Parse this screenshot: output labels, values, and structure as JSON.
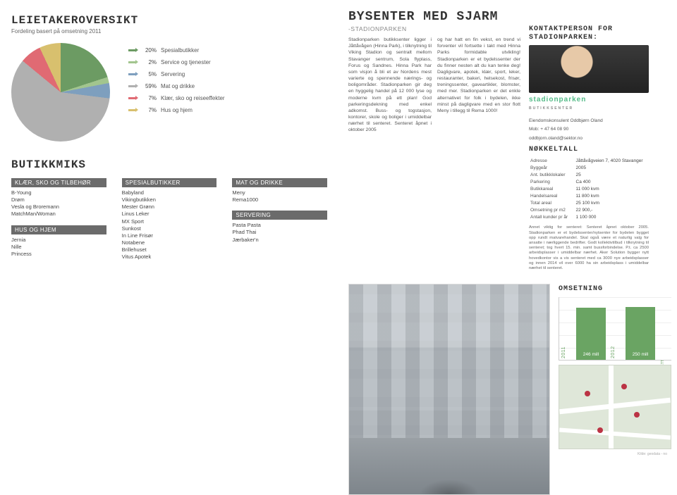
{
  "left": {
    "title": "LEIETAKEROVERSIKT",
    "subtitle": "Fordeling basert på omsetning 2011",
    "pie": {
      "type": "pie",
      "background_color": "#ffffff",
      "slices": [
        {
          "label": "Spesialbutikker",
          "pct": 20,
          "color": "#6c9b63"
        },
        {
          "label": "Service og tjenester",
          "pct": 2,
          "color": "#a2c58e"
        },
        {
          "label": "Servering",
          "pct": 5,
          "color": "#7e9fbe"
        },
        {
          "label": "Mat og drikke",
          "pct": 59,
          "color": "#b0b0b0"
        },
        {
          "label": "Klær, sko og reiseeffekter",
          "pct": 7,
          "color": "#e06a73"
        },
        {
          "label": "Hus og hjem",
          "pct": 7,
          "color": "#d8c06e"
        }
      ]
    },
    "butikkmiks": {
      "title": "BUTIKKMIKS",
      "columns": [
        {
          "groups": [
            {
              "title": "KLÆR, SKO OG TILBEHØR",
              "items": [
                "B-Young",
                "Drøm",
                "Vesla og Broremann",
                "MatchMan/Woman"
              ]
            },
            {
              "title": "HUS OG HJEM",
              "items": [
                "Jernia",
                "Nille",
                "Princess"
              ]
            }
          ]
        },
        {
          "groups": [
            {
              "title": "SPESIALBUTIKKER",
              "items": [
                "Babyland",
                "Vikingbutikken",
                "Mester Grønn",
                "Linus Leker",
                "MX Sport",
                "Sunkost",
                "In Line Frisør",
                "Notabene",
                "Brillehuset",
                "Vitus Apotek"
              ]
            }
          ]
        },
        {
          "groups": [
            {
              "title": "MAT OG DRIKKE",
              "items": [
                "Meny",
                "Rema1000"
              ]
            },
            {
              "title": "SERVERING",
              "items": [
                "Pasta Pasta",
                "Phad Thai",
                "Jærbaker'n"
              ]
            }
          ]
        }
      ]
    }
  },
  "right": {
    "hero_title": "BYSENTER MED SJARM",
    "hero_sub": "-STADIONPARKEN",
    "desc_col1": "Stadionparken butikksenter ligger i Jåttåvågen (Hinna Park), i tilknytning til Viking Stadion og sentralt mellom Stavanger sentrum, Sola flyplass, Forus og Sandnes. Hinna Park har som visjon å bli et av Nordens mest varierte og spennende nærings- og boligområder. Stadionparken gir deg en hyggelig handel på 12 000 lyse og moderne kvm på ett plan! God parkeringsdekning med enkel adkomst. Buss- og togstasjon, kontorer, skole og boliger i umiddelbar nærhet til senteret. Senteret åpnet i oktober 2005",
    "desc_col2": "og har hatt en fin vekst, en trend vi forventer vil fortsette i takt med Hinna Parks formidable utvikling! Stadionparken er et bydelssenter der du finner nesten alt du kan tenke deg! Dagligvare, apotek, klær, sport, leker, restauranter, bakeri, helsekost, frisør, treningssenter, gaveartikler, blomster, med mer. Stadionparken er det enkle alternativet for folk i bydelen, ikke minst på dagligvare med en stor flott Meny i tillegg til Rema 1000!",
    "contact": {
      "heading": "KONTAKTPERSON FOR STADIONPARKEN:",
      "brand": "stadionparken",
      "brand_sub": "BUTIKKSENTER",
      "name_line": "Eiendomskonsulent Oddbjørn Oland",
      "phone": "Mob: + 47 64 08 90",
      "email": "oddbjorn.oland@sektor.no"
    },
    "nokkeltall": {
      "heading": "NØKKELTALL",
      "rows": [
        [
          "Adresse",
          "Jåttåvågveien 7, 4020 Stavanger"
        ],
        [
          "Byggeår",
          "2005"
        ],
        [
          "Ant. butikklokaler",
          "25"
        ],
        [
          "Parkering",
          "Ca 400"
        ],
        [
          "Butikkareal",
          "11 000 kvm"
        ],
        [
          "Handelsareal",
          "11 800 kvm"
        ],
        [
          "Total areal",
          "25 100 kvm"
        ],
        [
          "Omsetning pr m2",
          "22 900,-"
        ],
        [
          "Antall kunder pr år",
          "1 100 000"
        ]
      ],
      "note": "Annet viktig for senteret: Senteret åpnet oktober 2005. Stadionparken er et bydelssenter/nytsenter for bydelen bygget opp rundt matvarehandel. Skal også være et naturlig valg for ansatte i nærliggende bedrifter. Godt kollektivtilbud i tilknytning til senteret; tog hvert 15. min. samt bussforbindelse. P.t. ca 2500 arbeidsplasser i umiddelbar nærhet. Aker Solution bygger nytt hovedkontor vis a vis senteret med ca 3000 nye arbeidsplasser og innen 2014 vil over 6000 ha sin arbeidsplass i umiddelbar nærhet til senteret."
    },
    "omsetning": {
      "heading": "OMSETNING",
      "type": "bar",
      "ylim": [
        0,
        300
      ],
      "grid_step": 60,
      "bar_color": "#6aa463",
      "bars": [
        {
          "year": "2011",
          "value": 246,
          "label": "246 mill",
          "badge": ""
        },
        {
          "year": "2012",
          "value": 250,
          "label": "250 mill",
          "badge": "BUDSJETT"
        }
      ]
    },
    "map": {
      "road_color": "#ffffff",
      "bg_color": "#dfe7d9",
      "pin_color": "#b34444"
    },
    "footer": "Kilde: geodata - no"
  }
}
